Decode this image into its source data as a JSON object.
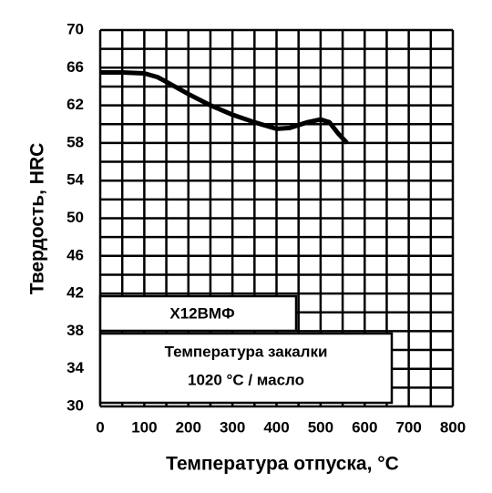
{
  "chart_data": {
    "type": "line",
    "xlabel": "Температура отпуска, °C",
    "ylabel": "Твердость, HRC",
    "annotations": [
      "Х12ВМФ",
      "Температура закалки",
      "1020 °C / масло"
    ],
    "x": [
      0,
      50,
      100,
      130,
      150,
      200,
      250,
      300,
      350,
      400,
      430,
      470,
      500,
      520,
      540,
      560
    ],
    "series": [
      {
        "color": "#000000",
        "values": [
          65.5,
          65.5,
          65.4,
          65.0,
          64.5,
          63.2,
          62.0,
          61.0,
          60.2,
          59.5,
          59.6,
          60.2,
          60.5,
          60.2,
          59.0,
          58.0
        ]
      }
    ],
    "xlim": [
      0,
      800
    ],
    "xticks": [
      0,
      100,
      200,
      300,
      400,
      500,
      600,
      700,
      800
    ],
    "ylim": [
      30,
      70
    ],
    "yticks": [
      30,
      34,
      38,
      42,
      46,
      50,
      54,
      58,
      62,
      66,
      70
    ],
    "grid": true,
    "minor_grid": true
  }
}
